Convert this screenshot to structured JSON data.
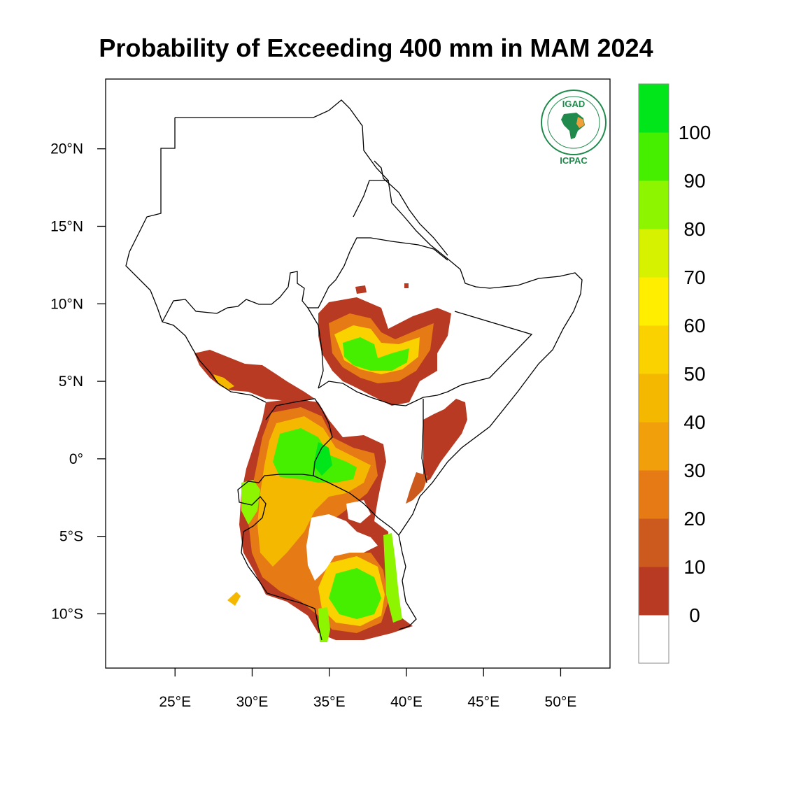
{
  "title": "Probability of Exceeding 400 mm in MAM 2024",
  "map": {
    "projection": "lat-lon",
    "lon_range": [
      20.5,
      53.2
    ],
    "lat_range": [
      -13.5,
      24.5
    ],
    "x_ticks": [
      {
        "lon": 25,
        "label": "25°E"
      },
      {
        "lon": 30,
        "label": "30°E"
      },
      {
        "lon": 35,
        "label": "35°E"
      },
      {
        "lon": 40,
        "label": "40°E"
      },
      {
        "lon": 45,
        "label": "45°E"
      },
      {
        "lon": 50,
        "label": "50°E"
      }
    ],
    "y_ticks": [
      {
        "lat": 20,
        "label": "20°N"
      },
      {
        "lat": 15,
        "label": "15°N"
      },
      {
        "lat": 10,
        "label": "10°N"
      },
      {
        "lat": 5,
        "label": "5°N"
      },
      {
        "lat": 0,
        "label": "0°"
      },
      {
        "lat": -5,
        "label": "5°S"
      },
      {
        "lat": -10,
        "label": "10°S"
      }
    ],
    "boundary_color": "#000000",
    "background": "#ffffff"
  },
  "colorbar": {
    "colors": [
      "#ffffff",
      "#b83a22",
      "#cc5a1e",
      "#e67a14",
      "#f29f0c",
      "#f5b800",
      "#f9d200",
      "#ffee00",
      "#d6f200",
      "#8ef500",
      "#46ee00",
      "#00e61a"
    ],
    "labels": [
      "0",
      "10",
      "20",
      "30",
      "40",
      "50",
      "60",
      "70",
      "80",
      "90",
      "100"
    ]
  },
  "logo": {
    "top_text": "IGAD",
    "bottom_text": "ICPAC"
  }
}
